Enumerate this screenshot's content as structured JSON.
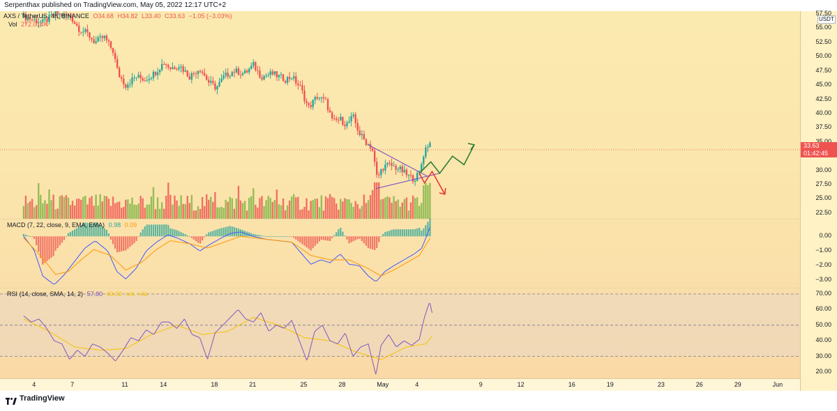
{
  "header": {
    "publisher": "Serpenthax published on TradingView.com, May 05, 2022 12:17 UTC+2"
  },
  "footer": {
    "brand": "TradingView",
    "logo_icon": "tradingview-logo-icon"
  },
  "main_legend": {
    "symbol": "AXS / TetherUS, 4h, BINANCE",
    "open": "O34.68",
    "high": "H34.82",
    "low": "L33.40",
    "close": "C33.63",
    "change": "−1.05 (−3.03%)",
    "vol_label": "Vol",
    "vol_value": "272.014K"
  },
  "macd_legend": {
    "label": "MACD (7, 22, close, 9, EMA, EMA)",
    "v1": "0.98",
    "v2": "0.09"
  },
  "rsi_legend": {
    "label": "RSI (14, close, SMA, 14, 2)",
    "v1": "57.80",
    "v2": "43.02",
    "v3": "n/a",
    "v4": "n/a"
  },
  "price_axis": {
    "currency": "USDT",
    "ticks": [
      "57.50",
      "55.00",
      "52.50",
      "50.00",
      "47.50",
      "45.00",
      "42.50",
      "40.00",
      "37.50",
      "35.00",
      "30.00",
      "27.50",
      "25.00",
      "22.50"
    ],
    "last_price": "33.63",
    "countdown": "01:42:45"
  },
  "macd_axis": {
    "ticks": [
      "0.00",
      "−1.00",
      "−2.00",
      "−3.00"
    ]
  },
  "rsi_axis": {
    "ticks": [
      "70.00",
      "60.00",
      "50.00",
      "40.00",
      "30.00",
      "20.00"
    ]
  },
  "time_axis": {
    "ticks": [
      "4",
      "7",
      "11",
      "14",
      "18",
      "21",
      "25",
      "28",
      "May",
      "4",
      "9",
      "12",
      "16",
      "19",
      "23",
      "26",
      "29",
      "Jun"
    ]
  },
  "colors": {
    "up": "#26a69a",
    "down": "#ef5350",
    "volume_up": "#7cb342",
    "volume_down": "#ef5350",
    "macd_line": "#3d5afe",
    "signal_line": "#ff9800",
    "rsi_line": "#7e57c2",
    "rsi_ma": "#f2c300",
    "arrow_up": "#2e7d32",
    "arrow_down": "#e53935",
    "triangle": "#7e57c2"
  },
  "chart_data": [
    {
      "type": "candlestick",
      "title": "AXS / TetherUS, 4h, BINANCE",
      "ylim": [
        21.5,
        58
      ],
      "x_span_days": [
        3,
        36
      ],
      "close_anchors": [
        [
          3.0,
          57.0
        ],
        [
          4.5,
          56.0
        ],
        [
          5.5,
          57.5
        ],
        [
          6.7,
          57.0
        ],
        [
          7.3,
          55.0
        ],
        [
          8.0,
          54.0
        ],
        [
          8.6,
          52.5
        ],
        [
          9.3,
          53.5
        ],
        [
          10.0,
          51.0
        ],
        [
          10.4,
          47.0
        ],
        [
          11.0,
          45.0
        ],
        [
          11.8,
          46.5
        ],
        [
          12.5,
          46.0
        ],
        [
          13.2,
          47.0
        ],
        [
          14.0,
          49.0
        ],
        [
          14.5,
          48.0
        ],
        [
          15.2,
          48.5
        ],
        [
          16.0,
          46.5
        ],
        [
          16.8,
          48.0
        ],
        [
          17.5,
          45.5
        ],
        [
          18.1,
          44.5
        ],
        [
          18.7,
          46.5
        ],
        [
          19.5,
          47.5
        ],
        [
          20.3,
          47.0
        ],
        [
          21.0,
          48.5
        ],
        [
          21.6,
          46.5
        ],
        [
          22.5,
          47.0
        ],
        [
          23.5,
          46.0
        ],
        [
          24.0,
          46.5
        ],
        [
          24.7,
          44.5
        ],
        [
          25.3,
          41.0
        ],
        [
          26.0,
          43.0
        ],
        [
          26.7,
          42.0
        ],
        [
          27.2,
          38.5
        ],
        [
          27.8,
          39.0
        ],
        [
          28.3,
          38.0
        ],
        [
          28.8,
          39.5
        ],
        [
          29.3,
          36.5
        ],
        [
          29.8,
          35.0
        ],
        [
          30.3,
          34.0
        ],
        [
          30.7,
          28.5
        ],
        [
          31.1,
          30.5
        ],
        [
          31.6,
          31.0
        ],
        [
          32.2,
          30.5
        ],
        [
          32.6,
          30.0
        ],
        [
          33.1,
          29.0
        ],
        [
          33.6,
          28.5
        ],
        [
          34.0,
          29.5
        ],
        [
          34.4,
          33.5
        ],
        [
          34.8,
          35.0
        ],
        [
          35.0,
          33.6
        ]
      ],
      "last_price": 33.63,
      "annotations": [
        "symmetrical triangle",
        "bullish projection arrow",
        "bearish projection arrow"
      ]
    },
    {
      "type": "bar",
      "name": "Vol",
      "last_value": "272.014K",
      "note": "volume histogram, volume ~ relative units 0-100"
    },
    {
      "type": "line",
      "name": "MACD (7, 22, close, 9, EMA, EMA)",
      "ylim": [
        -3.5,
        1.2
      ],
      "series": [
        {
          "name": "MACD",
          "anchors": [
            [
              3,
              0.0
            ],
            [
              3.8,
              -0.9
            ],
            [
              4.5,
              -2.7
            ],
            [
              5.4,
              -3.3
            ],
            [
              6.2,
              -2.6
            ],
            [
              7.0,
              -1.7
            ],
            [
              7.8,
              -0.8
            ],
            [
              8.6,
              -0.3
            ],
            [
              9.6,
              -1.0
            ],
            [
              10.3,
              -2.4
            ],
            [
              11.0,
              -2.9
            ],
            [
              11.8,
              -2.2
            ],
            [
              12.6,
              -1.0
            ],
            [
              13.4,
              -0.4
            ],
            [
              14.3,
              0.1
            ],
            [
              15.0,
              -0.1
            ],
            [
              16.0,
              -0.5
            ],
            [
              16.8,
              -1.0
            ],
            [
              17.5,
              -0.6
            ],
            [
              18.3,
              -0.2
            ],
            [
              19.2,
              0.2
            ],
            [
              20.0,
              0.3
            ],
            [
              21.0,
              0.0
            ],
            [
              22.0,
              -0.2
            ],
            [
              23.0,
              -0.3
            ],
            [
              24.0,
              -0.4
            ],
            [
              24.8,
              -1.2
            ],
            [
              25.5,
              -1.9
            ],
            [
              26.3,
              -1.6
            ],
            [
              27.0,
              -1.8
            ],
            [
              27.8,
              -1.2
            ],
            [
              28.5,
              -1.9
            ],
            [
              29.3,
              -2.0
            ],
            [
              30.0,
              -2.7
            ],
            [
              30.6,
              -3.1
            ],
            [
              31.3,
              -2.4
            ],
            [
              32.0,
              -2.0
            ],
            [
              32.8,
              -1.6
            ],
            [
              33.6,
              -1.2
            ],
            [
              34.2,
              -0.8
            ],
            [
              35.0,
              1.0
            ]
          ]
        },
        {
          "name": "Signal",
          "anchors": [
            [
              3,
              -0.1
            ],
            [
              4.5,
              -1.5
            ],
            [
              5.5,
              -2.6
            ],
            [
              6.5,
              -2.4
            ],
            [
              7.5,
              -1.6
            ],
            [
              8.5,
              -0.9
            ],
            [
              9.8,
              -1.3
            ],
            [
              11.0,
              -2.3
            ],
            [
              12.2,
              -1.8
            ],
            [
              13.4,
              -0.9
            ],
            [
              14.5,
              -0.3
            ],
            [
              16.0,
              -0.5
            ],
            [
              17.4,
              -0.8
            ],
            [
              18.7,
              -0.4
            ],
            [
              20.0,
              0.0
            ],
            [
              22.0,
              -0.2
            ],
            [
              24.0,
              -0.4
            ],
            [
              25.5,
              -1.3
            ],
            [
              27.0,
              -1.6
            ],
            [
              28.5,
              -1.6
            ],
            [
              30.0,
              -2.2
            ],
            [
              31.0,
              -2.7
            ],
            [
              32.0,
              -2.3
            ],
            [
              33.0,
              -1.8
            ],
            [
              34.0,
              -1.3
            ],
            [
              35.0,
              0.1
            ]
          ]
        }
      ],
      "histogram_note": "histogram bars = MACD - Signal"
    },
    {
      "type": "line",
      "name": "RSI (14, close, SMA, 14, 2)",
      "ylim": [
        16,
        74
      ],
      "bands": [
        70,
        50,
        30
      ],
      "series": [
        {
          "name": "RSI",
          "anchors": [
            [
              3,
              56
            ],
            [
              3.6,
              52
            ],
            [
              4.2,
              54
            ],
            [
              4.8,
              48
            ],
            [
              5.4,
              40
            ],
            [
              6.0,
              38
            ],
            [
              6.6,
              28
            ],
            [
              7.2,
              34
            ],
            [
              7.8,
              30
            ],
            [
              8.4,
              38
            ],
            [
              9.0,
              36
            ],
            [
              9.6,
              32
            ],
            [
              10.2,
              27
            ],
            [
              10.8,
              34
            ],
            [
              11.4,
              42
            ],
            [
              12.0,
              40
            ],
            [
              12.6,
              47
            ],
            [
              13.2,
              44
            ],
            [
              13.8,
              52
            ],
            [
              14.4,
              52
            ],
            [
              15.0,
              48
            ],
            [
              15.6,
              54
            ],
            [
              16.2,
              44
            ],
            [
              16.8,
              42
            ],
            [
              17.4,
              28
            ],
            [
              18.0,
              45
            ],
            [
              18.6,
              50
            ],
            [
              19.2,
              55
            ],
            [
              19.8,
              60
            ],
            [
              20.4,
              54
            ],
            [
              21.0,
              52
            ],
            [
              21.6,
              58
            ],
            [
              22.2,
              46
            ],
            [
              22.8,
              50
            ],
            [
              23.4,
              48
            ],
            [
              24.0,
              53
            ],
            [
              24.6,
              40
            ],
            [
              25.2,
              27
            ],
            [
              25.8,
              46
            ],
            [
              26.4,
              50
            ],
            [
              27.0,
              40
            ],
            [
              27.6,
              38
            ],
            [
              28.2,
              45
            ],
            [
              28.8,
              30
            ],
            [
              29.4,
              36
            ],
            [
              30.0,
              38
            ],
            [
              30.6,
              18
            ],
            [
              31.0,
              37
            ],
            [
              31.6,
              44
            ],
            [
              32.2,
              36
            ],
            [
              32.8,
              40
            ],
            [
              33.4,
              37
            ],
            [
              34.0,
              41
            ],
            [
              34.4,
              55
            ],
            [
              34.8,
              65
            ],
            [
              35.0,
              58
            ]
          ]
        },
        {
          "name": "RSI-MA",
          "anchors": [
            [
              3,
              54
            ],
            [
              5,
              46
            ],
            [
              7,
              36
            ],
            [
              9,
              34
            ],
            [
              11,
              35
            ],
            [
              13,
              44
            ],
            [
              15,
              50
            ],
            [
              17,
              44
            ],
            [
              19,
              46
            ],
            [
              21,
              55
            ],
            [
              23,
              50
            ],
            [
              25,
              42
            ],
            [
              27,
              40
            ],
            [
              29,
              33
            ],
            [
              31,
              28
            ],
            [
              33,
              36
            ],
            [
              34.5,
              38
            ],
            [
              35,
              43
            ]
          ]
        }
      ]
    }
  ]
}
